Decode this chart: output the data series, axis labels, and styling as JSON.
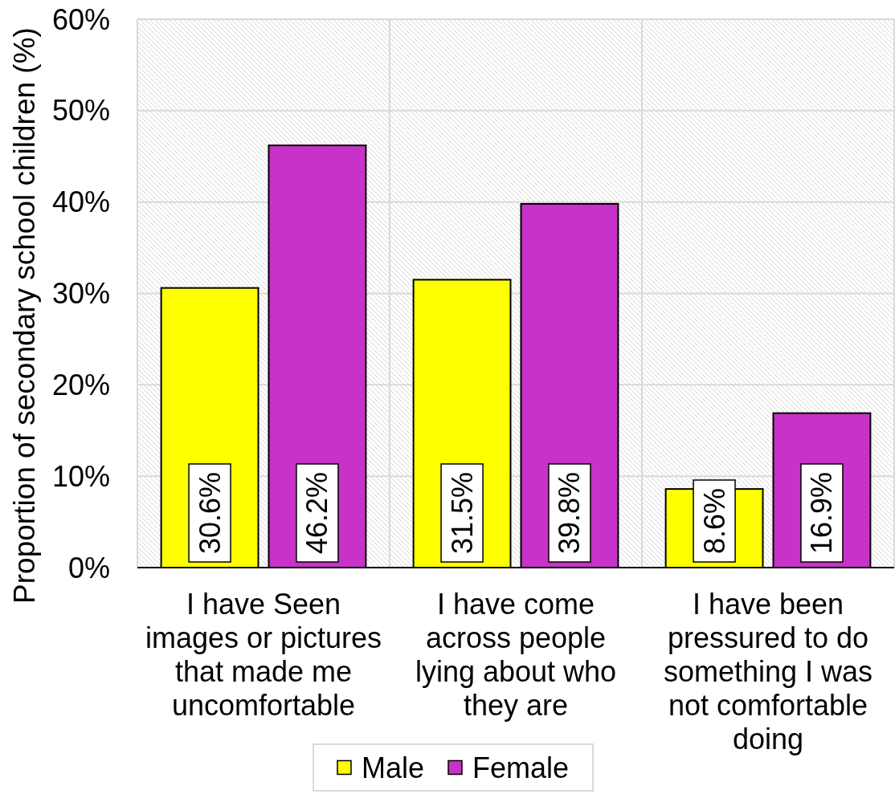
{
  "chart_data": {
    "type": "bar",
    "ylabel": "Proportion of secondary school children (%)",
    "categories": [
      "I have Seen\nimages or pictures\nthat made me\nuncomfortable",
      "I have come\nacross people\nlying about who\nthey are",
      "I have been\npressured to do\nsomething I was\nnot comfortable\ndoing"
    ],
    "series": [
      {
        "name": "Male",
        "color": "#ffff00",
        "values": [
          30.6,
          31.5,
          8.6
        ],
        "value_labels": [
          "30.6%",
          "31.5%",
          "8.6%"
        ]
      },
      {
        "name": "Female",
        "color": "#c832c8",
        "values": [
          46.2,
          39.8,
          16.9
        ],
        "value_labels": [
          "46.2%",
          "39.8%",
          "16.9%"
        ]
      }
    ],
    "ylim": [
      0,
      60
    ],
    "yticks": [
      {
        "value": 0,
        "label": "0%"
      },
      {
        "value": 10,
        "label": "10%"
      },
      {
        "value": 20,
        "label": "20%"
      },
      {
        "value": 30,
        "label": "30%"
      },
      {
        "value": 40,
        "label": "40%"
      },
      {
        "value": 50,
        "label": "50%"
      },
      {
        "value": 60,
        "label": "60%"
      }
    ],
    "grid": true,
    "legend": "bottom"
  }
}
